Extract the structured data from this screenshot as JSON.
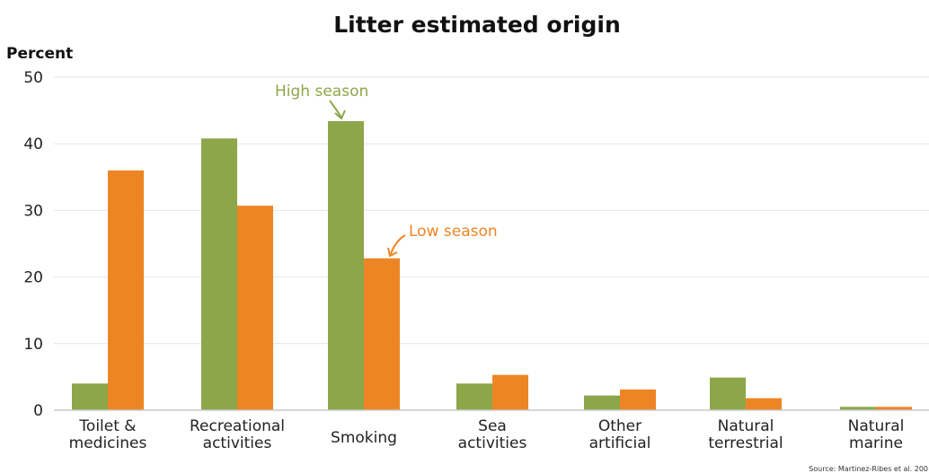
{
  "chart_data": {
    "type": "bar",
    "title": "Litter estimated origin",
    "ylabel": "Percent",
    "ylim": [
      0,
      50
    ],
    "yticks": [
      0,
      10,
      20,
      30,
      40,
      50
    ],
    "grid": true,
    "categories": [
      [
        "Toilet &",
        "medicines"
      ],
      [
        "Recreational",
        "activities"
      ],
      [
        "Smoking"
      ],
      [
        "Sea",
        "activities"
      ],
      [
        "Other",
        "artificial"
      ],
      [
        "Natural",
        "terrestrial"
      ],
      [
        "Natural",
        "marine"
      ]
    ],
    "series": [
      {
        "name": "High season",
        "color": "#8da64a",
        "values": [
          4,
          40.8,
          43.4,
          4,
          2.2,
          4.9,
          0.5
        ]
      },
      {
        "name": "Low season",
        "color": "#ee8524",
        "values": [
          36,
          30.7,
          22.8,
          5.3,
          3.1,
          1.8,
          0.5
        ]
      }
    ],
    "annotations": {
      "high": "High season",
      "low": "Low season"
    },
    "source": "Source: Martinez-Ribes et al. 200"
  }
}
